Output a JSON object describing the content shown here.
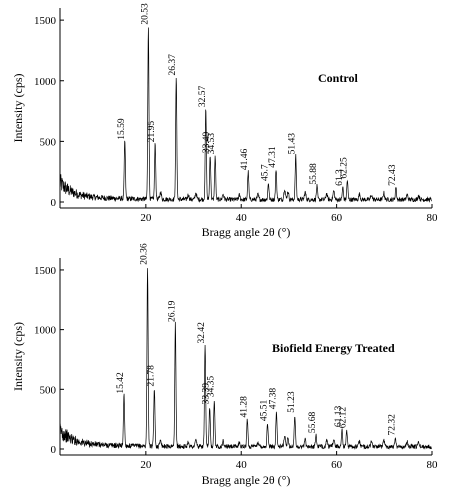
{
  "chart_data": [
    {
      "type": "line",
      "title": "Control",
      "xlabel": "Bragg angle 2θ (°)",
      "ylabel": "Intensity (cps)",
      "xlim": [
        2,
        80
      ],
      "ylim": [
        0,
        1600
      ],
      "xticks": [
        20,
        40,
        60,
        80
      ],
      "yticks": [
        0,
        500,
        1000,
        1500
      ],
      "peaks": [
        {
          "x": 15.59,
          "y": 480,
          "label": "15.59"
        },
        {
          "x": 20.53,
          "y": 1430,
          "label": "20.53"
        },
        {
          "x": 21.95,
          "y": 460,
          "label": "21.95"
        },
        {
          "x": 26.37,
          "y": 1010,
          "label": "26.37"
        },
        {
          "x": 32.57,
          "y": 750,
          "label": "32.57"
        },
        {
          "x": 33.49,
          "y": 370,
          "label": "33.49"
        },
        {
          "x": 34.53,
          "y": 360,
          "label": "34.53"
        },
        {
          "x": 41.46,
          "y": 230,
          "label": "41.46"
        },
        {
          "x": 45.7,
          "y": 140,
          "label": "45.7"
        },
        {
          "x": 47.31,
          "y": 250,
          "label": "47.31"
        },
        {
          "x": 51.43,
          "y": 360,
          "label": "51.43"
        },
        {
          "x": 55.88,
          "y": 110,
          "label": "55.88"
        },
        {
          "x": 61.3,
          "y": 100,
          "label": "61.3"
        },
        {
          "x": 62.25,
          "y": 160,
          "label": "62.25"
        },
        {
          "x": 72.43,
          "y": 100,
          "label": "72.43"
        }
      ]
    },
    {
      "type": "line",
      "title": "Biofield Energy Treated",
      "xlabel": "Bragg angle 2θ (°)",
      "ylabel": "Intensity (cps)",
      "xlim": [
        2,
        80
      ],
      "ylim": [
        0,
        1600
      ],
      "xticks": [
        20,
        40,
        60,
        80
      ],
      "yticks": [
        0,
        500,
        1000,
        1500
      ],
      "peaks": [
        {
          "x": 15.42,
          "y": 430,
          "label": "15.42"
        },
        {
          "x": 20.36,
          "y": 1510,
          "label": "20.36"
        },
        {
          "x": 21.78,
          "y": 490,
          "label": "21.78"
        },
        {
          "x": 26.19,
          "y": 1030,
          "label": "26.19"
        },
        {
          "x": 32.42,
          "y": 850,
          "label": "32.42"
        },
        {
          "x": 33.39,
          "y": 340,
          "label": "33.39"
        },
        {
          "x": 34.35,
          "y": 400,
          "label": "34.35"
        },
        {
          "x": 41.28,
          "y": 230,
          "label": "41.28"
        },
        {
          "x": 45.51,
          "y": 200,
          "label": "45.51"
        },
        {
          "x": 47.38,
          "y": 300,
          "label": "47.38"
        },
        {
          "x": 51.23,
          "y": 270,
          "label": "51.23"
        },
        {
          "x": 55.68,
          "y": 100,
          "label": "55.68"
        },
        {
          "x": 61.13,
          "y": 150,
          "label": "61.13"
        },
        {
          "x": 62.12,
          "y": 140,
          "label": "62.12"
        },
        {
          "x": 72.32,
          "y": 80,
          "label": "72.32"
        }
      ]
    }
  ]
}
